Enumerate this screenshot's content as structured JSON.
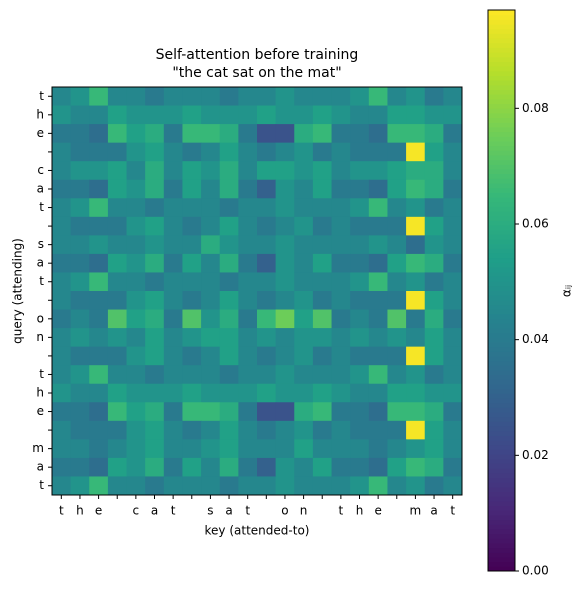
{
  "chart_data": {
    "type": "heatmap",
    "title": "Self-attention before training",
    "subtitle": "\"the cat sat on the mat\"",
    "xlabel": "key (attended-to)",
    "ylabel": "query (attending)",
    "colorbar_label": "αᵢⱼ",
    "colormap": "viridis",
    "x_categories": [
      "t",
      "h",
      "e",
      null,
      "c",
      "a",
      "t",
      null,
      "s",
      "a",
      "t",
      null,
      "o",
      "n",
      null,
      "t",
      "h",
      "e",
      null,
      "m",
      "a",
      "t"
    ],
    "y_categories": [
      "t",
      "h",
      "e",
      null,
      "c",
      "a",
      "t",
      null,
      "s",
      "a",
      "t",
      null,
      "o",
      "n",
      null,
      "t",
      "h",
      "e",
      null,
      "m",
      "a",
      "t"
    ],
    "values": [
      [
        0.045,
        0.05,
        0.065,
        0.045,
        0.045,
        0.04,
        0.045,
        0.045,
        0.045,
        0.04,
        0.045,
        0.045,
        0.05,
        0.045,
        0.045,
        0.045,
        0.05,
        0.065,
        0.045,
        0.05,
        0.04,
        0.045
      ],
      [
        0.05,
        0.045,
        0.045,
        0.055,
        0.05,
        0.05,
        0.05,
        0.055,
        0.05,
        0.05,
        0.05,
        0.055,
        0.05,
        0.05,
        0.055,
        0.05,
        0.045,
        0.045,
        0.055,
        0.055,
        0.05,
        0.05
      ],
      [
        0.04,
        0.04,
        0.035,
        0.065,
        0.055,
        0.06,
        0.04,
        0.065,
        0.065,
        0.06,
        0.04,
        0.025,
        0.025,
        0.06,
        0.065,
        0.04,
        0.04,
        0.035,
        0.065,
        0.065,
        0.06,
        0.04
      ],
      [
        0.045,
        0.04,
        0.04,
        0.04,
        0.05,
        0.055,
        0.045,
        0.04,
        0.045,
        0.055,
        0.045,
        0.04,
        0.045,
        0.05,
        0.04,
        0.045,
        0.04,
        0.04,
        0.04,
        0.096,
        0.055,
        0.045
      ],
      [
        0.045,
        0.05,
        0.05,
        0.055,
        0.045,
        0.06,
        0.045,
        0.055,
        0.05,
        0.06,
        0.045,
        0.055,
        0.055,
        0.05,
        0.055,
        0.045,
        0.05,
        0.05,
        0.055,
        0.06,
        0.06,
        0.045
      ],
      [
        0.04,
        0.04,
        0.035,
        0.055,
        0.05,
        0.06,
        0.04,
        0.055,
        0.045,
        0.06,
        0.04,
        0.03,
        0.05,
        0.045,
        0.055,
        0.04,
        0.04,
        0.035,
        0.055,
        0.065,
        0.06,
        0.04
      ],
      [
        0.045,
        0.05,
        0.065,
        0.045,
        0.045,
        0.04,
        0.045,
        0.045,
        0.045,
        0.04,
        0.045,
        0.045,
        0.05,
        0.045,
        0.045,
        0.045,
        0.05,
        0.065,
        0.045,
        0.05,
        0.04,
        0.045
      ],
      [
        0.045,
        0.04,
        0.04,
        0.04,
        0.05,
        0.055,
        0.045,
        0.04,
        0.045,
        0.055,
        0.045,
        0.04,
        0.045,
        0.05,
        0.04,
        0.045,
        0.04,
        0.04,
        0.04,
        0.096,
        0.055,
        0.045
      ],
      [
        0.045,
        0.045,
        0.05,
        0.045,
        0.045,
        0.05,
        0.045,
        0.045,
        0.06,
        0.05,
        0.045,
        0.045,
        0.05,
        0.045,
        0.045,
        0.045,
        0.045,
        0.05,
        0.045,
        0.035,
        0.05,
        0.045
      ],
      [
        0.04,
        0.04,
        0.035,
        0.055,
        0.05,
        0.06,
        0.04,
        0.055,
        0.045,
        0.06,
        0.04,
        0.03,
        0.05,
        0.045,
        0.055,
        0.04,
        0.04,
        0.035,
        0.055,
        0.065,
        0.06,
        0.04
      ],
      [
        0.045,
        0.05,
        0.065,
        0.045,
        0.045,
        0.04,
        0.045,
        0.045,
        0.045,
        0.04,
        0.045,
        0.045,
        0.05,
        0.045,
        0.045,
        0.045,
        0.05,
        0.065,
        0.045,
        0.05,
        0.04,
        0.045
      ],
      [
        0.045,
        0.04,
        0.04,
        0.04,
        0.05,
        0.055,
        0.045,
        0.04,
        0.045,
        0.055,
        0.045,
        0.04,
        0.045,
        0.05,
        0.04,
        0.045,
        0.04,
        0.04,
        0.04,
        0.096,
        0.055,
        0.045
      ],
      [
        0.04,
        0.045,
        0.04,
        0.07,
        0.055,
        0.06,
        0.04,
        0.07,
        0.05,
        0.06,
        0.04,
        0.065,
        0.075,
        0.055,
        0.07,
        0.04,
        0.045,
        0.04,
        0.07,
        0.04,
        0.06,
        0.04
      ],
      [
        0.045,
        0.05,
        0.045,
        0.05,
        0.045,
        0.055,
        0.045,
        0.05,
        0.055,
        0.055,
        0.045,
        0.05,
        0.045,
        0.05,
        0.05,
        0.045,
        0.05,
        0.045,
        0.05,
        0.045,
        0.055,
        0.045
      ],
      [
        0.045,
        0.04,
        0.04,
        0.04,
        0.05,
        0.055,
        0.045,
        0.04,
        0.045,
        0.055,
        0.045,
        0.04,
        0.045,
        0.05,
        0.04,
        0.045,
        0.04,
        0.04,
        0.04,
        0.096,
        0.055,
        0.045
      ],
      [
        0.045,
        0.05,
        0.065,
        0.045,
        0.045,
        0.04,
        0.045,
        0.045,
        0.045,
        0.04,
        0.045,
        0.045,
        0.05,
        0.045,
        0.045,
        0.045,
        0.05,
        0.065,
        0.045,
        0.05,
        0.04,
        0.045
      ],
      [
        0.05,
        0.045,
        0.045,
        0.055,
        0.05,
        0.05,
        0.05,
        0.055,
        0.05,
        0.05,
        0.05,
        0.055,
        0.05,
        0.05,
        0.055,
        0.05,
        0.045,
        0.045,
        0.055,
        0.055,
        0.05,
        0.05
      ],
      [
        0.04,
        0.04,
        0.035,
        0.065,
        0.055,
        0.06,
        0.04,
        0.065,
        0.065,
        0.06,
        0.04,
        0.025,
        0.025,
        0.06,
        0.065,
        0.04,
        0.04,
        0.035,
        0.065,
        0.065,
        0.06,
        0.04
      ],
      [
        0.045,
        0.04,
        0.04,
        0.04,
        0.05,
        0.055,
        0.045,
        0.04,
        0.045,
        0.055,
        0.045,
        0.04,
        0.045,
        0.05,
        0.04,
        0.045,
        0.04,
        0.04,
        0.04,
        0.096,
        0.055,
        0.045
      ],
      [
        0.045,
        0.045,
        0.04,
        0.045,
        0.05,
        0.055,
        0.045,
        0.045,
        0.05,
        0.055,
        0.045,
        0.045,
        0.045,
        0.055,
        0.045,
        0.045,
        0.045,
        0.04,
        0.045,
        0.05,
        0.055,
        0.045
      ],
      [
        0.04,
        0.04,
        0.035,
        0.055,
        0.05,
        0.06,
        0.04,
        0.055,
        0.045,
        0.06,
        0.04,
        0.03,
        0.05,
        0.045,
        0.055,
        0.04,
        0.04,
        0.035,
        0.055,
        0.065,
        0.06,
        0.04
      ],
      [
        0.045,
        0.05,
        0.065,
        0.045,
        0.045,
        0.04,
        0.045,
        0.045,
        0.045,
        0.04,
        0.045,
        0.045,
        0.05,
        0.045,
        0.045,
        0.045,
        0.05,
        0.065,
        0.045,
        0.05,
        0.04,
        0.045
      ]
    ],
    "clim": [
      0,
      0.097
    ],
    "cticks": [
      {
        "value": 0,
        "label": "0.00"
      },
      {
        "value": 0.02,
        "label": "0.02"
      },
      {
        "value": 0.04,
        "label": "0.04"
      },
      {
        "value": 0.06,
        "label": "0.06"
      },
      {
        "value": 0.08,
        "label": "0.08"
      }
    ]
  }
}
